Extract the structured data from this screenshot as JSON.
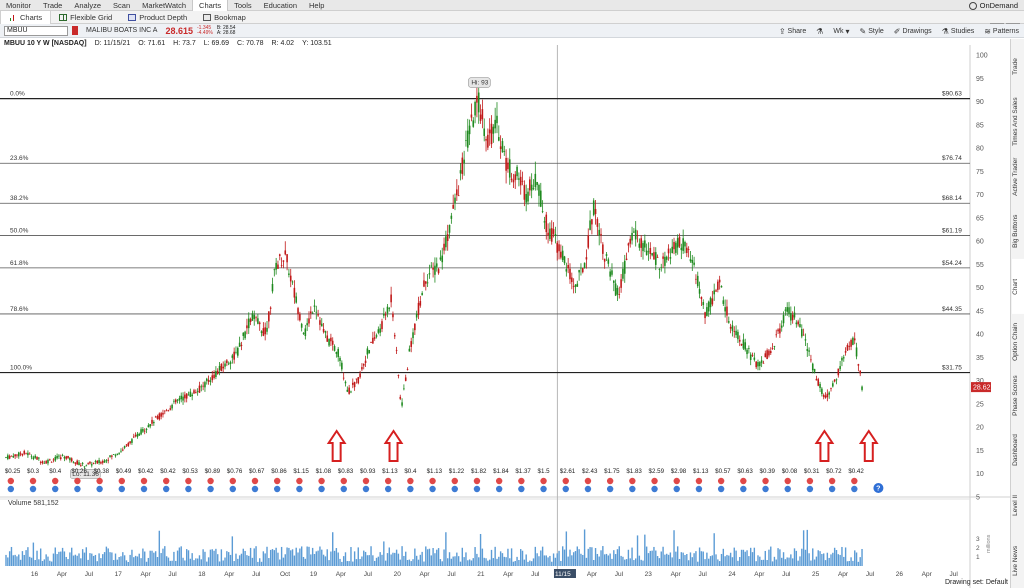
{
  "menu": {
    "items": [
      "Monitor",
      "Trade",
      "Analyze",
      "Scan",
      "MarketWatch",
      "Charts",
      "Tools",
      "Education",
      "Help"
    ],
    "active": "Charts",
    "ondemand": "OnDemand"
  },
  "tabs": [
    {
      "label": "Charts",
      "icon": "chart-icon"
    },
    {
      "label": "Flexible Grid",
      "icon": "grid-icon"
    },
    {
      "label": "Product Depth",
      "icon": "depth-icon"
    },
    {
      "label": "Bookmap",
      "icon": "bookmap-icon"
    }
  ],
  "symbol": {
    "ticker": "MBUU",
    "name": "MALIBU BOATS INC A",
    "last": "28.615",
    "change": "-1.345",
    "pct": "-4.49%",
    "bid": "B: 28.54",
    "ask": "A: 28.68"
  },
  "toolbar": {
    "share": "Share",
    "period": "Wk",
    "style": "Style",
    "drawings": "Drawings",
    "studies": "Studies",
    "patterns": "Patterns"
  },
  "header": {
    "title": "MBUU 10 Y W [NASDAQ]",
    "date": "D: 11/15/21",
    "open": "O: 71.61",
    "high": "H: 73.7",
    "low": "L: 69.69",
    "close": "C: 70.78",
    "range": "R: 4.02",
    "y": "Y: 103.51"
  },
  "side_tabs": [
    "Trade",
    "Times And Sales",
    "Active Trader",
    "Big Buttons",
    "Chart",
    "Option Chain",
    "Phase Scores",
    "Dashboard",
    "Level II",
    "Live News"
  ],
  "colors": {
    "up": "#1f8a1f",
    "down": "#c01818",
    "fib_line": "#333333",
    "arrow": "#d62020",
    "volume": "#5b9bd5",
    "last_badge": "#c92a2a"
  },
  "chart_data": {
    "type": "candlestick",
    "title": "MBUU 10 Y W [NASDAQ]",
    "timeframe": "10Y Weekly",
    "x_ticks": [
      "16",
      "Apr",
      "Jul",
      "17",
      "Apr",
      "Jul",
      "18",
      "Apr",
      "Jul",
      "Oct",
      "19",
      "Apr",
      "Jul",
      "20",
      "Apr",
      "Jul",
      "21",
      "Apr",
      "Jul",
      "11/15",
      "Apr",
      "Jul",
      "23",
      "Apr",
      "Jul",
      "24",
      "Apr",
      "Jul",
      "25",
      "Apr",
      "Jul",
      "26",
      "Apr",
      "Jul"
    ],
    "price_ticks": [
      5,
      10,
      15,
      20,
      25,
      30,
      35,
      40,
      45,
      50,
      55,
      60,
      65,
      70,
      75,
      80,
      85,
      90,
      95,
      100
    ],
    "ylim": [
      5,
      100
    ],
    "fib_levels": [
      {
        "pct": "0.0%",
        "price": 90.63
      },
      {
        "pct": "23.6%",
        "price": 76.74
      },
      {
        "pct": "38.2%",
        "price": 68.14
      },
      {
        "pct": "50.0%",
        "price": 61.19
      },
      {
        "pct": "61.8%",
        "price": 54.24
      },
      {
        "pct": "78.6%",
        "price": 44.35
      },
      {
        "pct": "100.0%",
        "price": 31.75
      }
    ],
    "fib_labels": [
      "$90.63",
      "$76.74",
      "$68.14",
      "$61.19",
      "$54.24",
      "$44.35",
      "$31.75"
    ],
    "hi_label": "Hi: 93",
    "lo_label": "Lo: 11.36",
    "last_price_label": "28.62",
    "price_path": [
      [
        0,
        13.5
      ],
      [
        0.02,
        14.5
      ],
      [
        0.04,
        12.5
      ],
      [
        0.06,
        13.8
      ],
      [
        0.08,
        11.8
      ],
      [
        0.1,
        12.6
      ],
      [
        0.12,
        15
      ],
      [
        0.14,
        19
      ],
      [
        0.16,
        22.5
      ],
      [
        0.18,
        26
      ],
      [
        0.2,
        28
      ],
      [
        0.22,
        32
      ],
      [
        0.24,
        36
      ],
      [
        0.255,
        44
      ],
      [
        0.27,
        40
      ],
      [
        0.28,
        55
      ],
      [
        0.29,
        57
      ],
      [
        0.3,
        48
      ],
      [
        0.31,
        40
      ],
      [
        0.32,
        47
      ],
      [
        0.33,
        40
      ],
      [
        0.345,
        36
      ],
      [
        0.355,
        27.5
      ],
      [
        0.365,
        30
      ],
      [
        0.375,
        36
      ],
      [
        0.39,
        42
      ],
      [
        0.4,
        48
      ],
      [
        0.41,
        24
      ],
      [
        0.42,
        38
      ],
      [
        0.435,
        52
      ],
      [
        0.45,
        55
      ],
      [
        0.46,
        63
      ],
      [
        0.47,
        72
      ],
      [
        0.48,
        83
      ],
      [
        0.49,
        90
      ],
      [
        0.5,
        82
      ],
      [
        0.51,
        85
      ],
      [
        0.52,
        76
      ],
      [
        0.53,
        74
      ],
      [
        0.54,
        70
      ],
      [
        0.55,
        74
      ],
      [
        0.56,
        64
      ],
      [
        0.575,
        58
      ],
      [
        0.59,
        50
      ],
      [
        0.6,
        55
      ],
      [
        0.61,
        68
      ],
      [
        0.62,
        58
      ],
      [
        0.635,
        48
      ],
      [
        0.65,
        62
      ],
      [
        0.665,
        58
      ],
      [
        0.68,
        55
      ],
      [
        0.7,
        60
      ],
      [
        0.715,
        54
      ],
      [
        0.725,
        44
      ],
      [
        0.74,
        51
      ],
      [
        0.75,
        43
      ],
      [
        0.765,
        38
      ],
      [
        0.78,
        33
      ],
      [
        0.795,
        37
      ],
      [
        0.81,
        45
      ],
      [
        0.82,
        43
      ],
      [
        0.83,
        38
      ],
      [
        0.84,
        31
      ],
      [
        0.85,
        26
      ],
      [
        0.86,
        30
      ],
      [
        0.87,
        36
      ],
      [
        0.88,
        39
      ],
      [
        0.885,
        33
      ],
      [
        0.888,
        28.6
      ]
    ],
    "dividend_labels": [
      "$0.25",
      "$0.3",
      "$0.4",
      "$0.26",
      "$0.38",
      "$0.49",
      "$0.42",
      "$0.42",
      "$0.53",
      "$0.89",
      "$0.76",
      "$0.67",
      "$0.86",
      "$1.15",
      "$1.08",
      "$0.83",
      "$0.93",
      "$1.13",
      "$0.4",
      "$1.13",
      "$1.22",
      "$1.82",
      "$1.84",
      "$1.37",
      "$1.5",
      "$2.61",
      "$2.43",
      "$1.75",
      "$1.83",
      "$2.59",
      "$2.98",
      "$1.13",
      "$0.57",
      "$0.63",
      "$0.39",
      "$0.08",
      "$0.31",
      "$0.72",
      "$0.42"
    ],
    "volume": {
      "label": "Volume",
      "value": "581,152",
      "ticks": [
        "1",
        "2",
        "3"
      ],
      "unit": "millions"
    }
  },
  "footer": {
    "drawing_set": "Drawing set: Default"
  }
}
